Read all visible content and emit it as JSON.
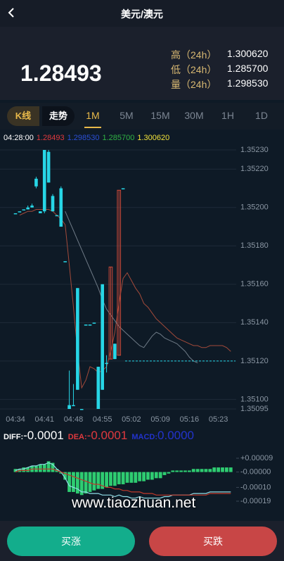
{
  "header": {
    "title": "美元/澳元"
  },
  "ticker": {
    "price": "1.28493",
    "stats": [
      {
        "label": "高（24h）",
        "value": "1.300620"
      },
      {
        "label": "低（24h）",
        "value": "1.285700"
      },
      {
        "label": "量（24h）",
        "value": "1.298530"
      }
    ]
  },
  "tabs": {
    "chart_types": [
      "K线",
      "走势"
    ],
    "active_chart_type": 0,
    "intervals": [
      "1M",
      "5M",
      "15M",
      "30M",
      "1H",
      "1D"
    ],
    "active_interval": 0
  },
  "ohlc_header": {
    "time": "04:28:00",
    "values": [
      {
        "text": "1.28493",
        "color": "#e0393e"
      },
      {
        "text": "1.298530",
        "color": "#2b4fd6"
      },
      {
        "text": "1.285700",
        "color": "#2fb344"
      },
      {
        "text": "1.300620",
        "color": "#f2e33a"
      }
    ]
  },
  "macd_header": [
    {
      "label": "DIFF:",
      "value": "-0.0001",
      "color": "#ffffff"
    },
    {
      "label": "DEA:",
      "value": "-0.0001",
      "color": "#e0393e"
    },
    {
      "label": "MACD:",
      "value": "0.0000",
      "color": "#2233cc"
    }
  ],
  "watermark": "www.tiaozhuan.net",
  "buttons": [
    {
      "text": "买涨",
      "color": "#13ad8c"
    },
    {
      "text": "买跌",
      "color": "#c84646"
    }
  ],
  "chart_data": [
    {
      "type": "candlestick",
      "up_color": "#d24b3a",
      "down_color": "#27d6e6",
      "grid": true,
      "categories": [
        "04:34",
        null,
        null,
        null,
        null,
        null,
        null,
        "04:41",
        null,
        null,
        null,
        null,
        null,
        null,
        "04:48",
        null,
        null,
        null,
        null,
        null,
        null,
        "04:55",
        null,
        null,
        null,
        null,
        null,
        null,
        "05:02",
        null,
        null,
        null,
        null,
        null,
        null,
        "05:09",
        null,
        null,
        null,
        null,
        null,
        null,
        "05:16",
        null,
        null,
        null,
        null,
        null,
        null,
        "05:23",
        null,
        null,
        null
      ],
      "open": [
        1.35197,
        1.35198,
        1.35199,
        1.352,
        1.35201,
        1.35215,
        1.35198,
        1.3523,
        1.35229,
        1.35206,
        1.35196,
        1.3521,
        1.35172,
        1.35097,
        1.35097,
        1.35158,
        1.35095,
        1.35139,
        1.35139,
        1.3514,
        1.35117,
        1.3516,
        1.35119,
        1.35121,
        1.35129,
        1.35123,
        1.3521,
        null,
        null,
        null,
        null,
        null,
        null,
        null,
        null,
        null,
        null,
        null,
        null,
        null,
        null,
        null,
        null,
        null,
        null,
        null,
        null,
        null,
        null,
        null,
        null,
        null,
        null
      ],
      "high": [
        1.35197,
        1.35198,
        1.35199,
        1.35201,
        1.35202,
        1.35216,
        1.35198,
        1.3523,
        1.3523,
        1.35207,
        1.35196,
        1.35211,
        1.35172,
        1.35115,
        1.35108,
        1.35158,
        1.35095,
        1.35139,
        1.35139,
        1.3514,
        1.35117,
        1.3516,
        1.35123,
        1.35169,
        1.35129,
        1.35209,
        1.3521,
        null,
        null,
        null,
        null,
        null,
        null,
        null,
        null,
        null,
        null,
        null,
        null,
        null,
        null,
        null,
        null,
        null,
        null,
        null,
        null,
        null,
        null,
        null,
        null,
        null,
        null
      ],
      "low": [
        1.35197,
        1.35198,
        1.35199,
        1.35199,
        1.352,
        1.3521,
        1.35197,
        1.35197,
        1.35213,
        1.35198,
        1.35196,
        1.3519,
        1.35172,
        1.35095,
        1.35097,
        1.35105,
        1.35095,
        1.35139,
        1.35139,
        1.3514,
        1.35095,
        1.35105,
        1.35114,
        1.35121,
        1.35121,
        1.35123,
        1.3521,
        null,
        null,
        null,
        null,
        null,
        null,
        null,
        null,
        null,
        null,
        null,
        null,
        null,
        null,
        null,
        null,
        null,
        null,
        null,
        null,
        null,
        null,
        null,
        null,
        null,
        null
      ],
      "close": [
        1.35197,
        1.35198,
        1.35199,
        1.35199,
        1.352,
        1.35211,
        1.35197,
        1.35198,
        1.35213,
        1.35198,
        1.35196,
        1.3519,
        1.35172,
        1.35095,
        1.35097,
        1.35105,
        1.35095,
        1.35139,
        1.35139,
        1.3514,
        1.35095,
        1.35105,
        1.35119,
        1.35169,
        1.35121,
        1.35209,
        1.3521,
        null,
        null,
        null,
        null,
        null,
        null,
        null,
        null,
        null,
        null,
        null,
        null,
        null,
        null,
        null,
        null,
        null,
        null,
        null,
        null,
        null,
        null,
        null,
        null,
        null,
        null
      ],
      "lines": [
        {
          "color": "#a24a3a",
          "values": [
            null,
            1.35196,
            1.35197,
            1.35198,
            1.35198,
            1.35199,
            1.35199,
            1.35199,
            1.35199,
            1.35198,
            1.35196,
            1.35194,
            1.35191,
            1.3517,
            1.35148,
            1.35125,
            1.35106,
            1.3511,
            1.35117,
            1.35116,
            1.35114,
            1.35115,
            1.35117,
            1.35125,
            1.35135,
            1.3515,
            1.35163,
            1.35166,
            1.35162,
            1.35158,
            1.35155,
            1.3515,
            1.35148,
            1.35145,
            1.35142,
            1.3514,
            1.35138,
            1.35136,
            1.35134,
            1.35132,
            1.35131,
            1.3513,
            1.35129,
            1.35128,
            1.35128,
            1.35127,
            1.35127,
            1.35128,
            1.35128,
            1.35128,
            1.35128,
            1.35127,
            1.35125
          ]
        },
        {
          "color": "#6f7b87",
          "values": [
            null,
            null,
            null,
            null,
            null,
            null,
            null,
            null,
            null,
            null,
            null,
            null,
            1.35198,
            1.35193,
            1.35188,
            1.35183,
            1.35178,
            1.35173,
            1.35168,
            1.35163,
            1.35158,
            1.35152,
            1.35147,
            1.35144,
            1.35141,
            1.35138,
            1.35136,
            1.35134,
            1.35132,
            1.3513,
            1.35128,
            1.35127,
            1.3513,
            1.35133,
            1.35135,
            1.35134,
            1.35132,
            1.35131,
            1.3513,
            1.35129,
            1.35127,
            1.35125,
            1.35122,
            1.3512,
            1.35119,
            null,
            null,
            null,
            null,
            null,
            null,
            null,
            null
          ]
        }
      ],
      "price_line": 1.3512,
      "ylim": [
        1.35095,
        1.3523
      ],
      "yticks": [
        {
          "value": 1.3523,
          "label": "1.35230"
        },
        {
          "value": 1.3522,
          "label": "1.35220"
        },
        {
          "value": 1.352,
          "label": "1.35200"
        },
        {
          "value": 1.3518,
          "label": "1.35180"
        },
        {
          "value": 1.3516,
          "label": "1.35160"
        },
        {
          "value": 1.3514,
          "label": "1.35140"
        },
        {
          "value": 1.3512,
          "label": "1.35120"
        },
        {
          "value": 1.351,
          "label": "1.35100"
        },
        {
          "value": 1.35095,
          "label": "1.35095"
        }
      ]
    },
    {
      "type": "macd",
      "bar_color": "#2ecc71",
      "histogram": [
        2e-05,
        2e-05,
        3e-05,
        3e-05,
        4e-05,
        4e-05,
        5e-05,
        5e-05,
        7e-05,
        6e-05,
        2e-05,
        -1e-05,
        -5e-05,
        -0.00013,
        -0.00013,
        -0.00014,
        -0.00015,
        -0.00014,
        -0.00013,
        -0.00012,
        -0.00011,
        -0.00011,
        -0.0001,
        -9e-05,
        -9e-05,
        -8e-05,
        -8e-05,
        -7e-05,
        -7e-05,
        -7e-05,
        -6e-05,
        -6e-05,
        -5e-05,
        -5e-05,
        -4e-05,
        -4e-05,
        -2e-05,
        -1e-05,
        1e-05,
        1e-05,
        1e-05,
        1e-05,
        1e-05,
        2e-05,
        2e-05,
        2e-05,
        2e-05,
        2e-05,
        3e-05,
        3e-05,
        3e-05,
        3e-05,
        3e-05
      ],
      "lines": [
        {
          "color": "#8fdde6",
          "values": [
            1e-05,
            2e-05,
            2e-05,
            3e-05,
            4e-05,
            4e-05,
            5e-05,
            5e-05,
            6e-05,
            5e-05,
            2e-05,
            0,
            -4e-05,
            -9e-05,
            -0.0001,
            -0.00011,
            -0.00013,
            -0.00013,
            -0.00014,
            -0.00014,
            -0.00014,
            -0.00015,
            -0.00015,
            -0.00015,
            -0.00016,
            -0.00015,
            -0.00016,
            -0.00016,
            -0.00017,
            -0.00017,
            -0.00016,
            -0.00017,
            -0.00017,
            -0.00017,
            -0.00017,
            -0.00017,
            -0.00016,
            -0.00016,
            -0.00015,
            -0.00015,
            -0.00015,
            -0.00015,
            -0.00015,
            -0.00014,
            -0.00014,
            -0.00014,
            -0.00014,
            -0.00013,
            -0.00013,
            -0.00013,
            -0.00013,
            -0.00013,
            -0.00013
          ]
        },
        {
          "color": "#c0392b",
          "values": [
            0,
            1e-05,
            1e-05,
            1e-05,
            2e-05,
            2e-05,
            2e-05,
            2e-05,
            2e-05,
            2e-05,
            1e-05,
            0,
            -1e-05,
            -2e-05,
            -3e-05,
            -4e-05,
            -5e-05,
            -6e-05,
            -7e-05,
            -8e-05,
            -8e-05,
            -9e-05,
            -0.0001,
            -0.0001,
            -0.00011,
            -0.00011,
            -0.00012,
            -0.00012,
            -0.00013,
            -0.00013,
            -0.00013,
            -0.00014,
            -0.00014,
            -0.00014,
            -0.00015,
            -0.00015,
            -0.00015,
            -0.00015,
            -0.00015,
            -0.00015,
            -0.00015,
            -0.00015,
            -0.00015,
            -0.00015,
            -0.00015,
            -0.00015,
            -0.00015,
            -0.00014,
            -0.00014,
            -0.00014,
            -0.00014,
            -0.00014,
            -0.00014
          ]
        }
      ],
      "ylim": [
        -0.00019,
        9e-05
      ],
      "yticks": [
        {
          "value": 9e-05,
          "label": "+0.00009"
        },
        {
          "value": 0,
          "label": "-0.00000"
        },
        {
          "value": -0.0001,
          "label": "-0.00010"
        },
        {
          "value": -0.00019,
          "label": "-0.00019"
        }
      ]
    }
  ]
}
